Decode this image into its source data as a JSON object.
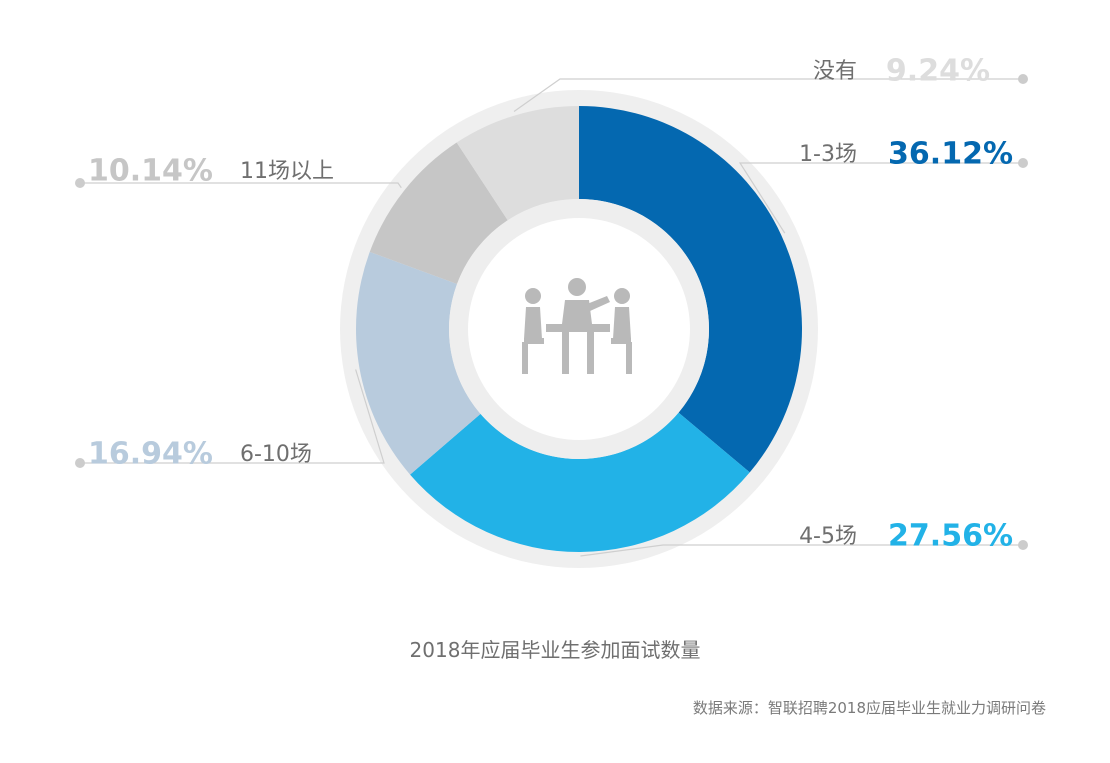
{
  "chart_data": {
    "type": "pie",
    "title": "2018年应届毕业生参加面试数量",
    "source": "数据来源：智联招聘2018应届毕业生就业力调研问卷",
    "series": [
      {
        "label": "1-3场",
        "value": 36.12,
        "display": "36.12%",
        "color": "#0468b0",
        "label_color": "#0468b0"
      },
      {
        "label": "4-5场",
        "value": 27.56,
        "display": "27.56%",
        "color": "#22b2e7",
        "label_color": "#22b2e7"
      },
      {
        "label": "6-10场",
        "value": 16.94,
        "display": "16.94%",
        "color": "#b8cbdd",
        "label_color": "#b8cbdd"
      },
      {
        "label": "11场以上",
        "value": 10.14,
        "display": "10.14%",
        "color": "#c6c6c6",
        "label_color": "#c6c6c6"
      },
      {
        "label": "没有",
        "value": 9.24,
        "display": "9.24%",
        "color": "#dddddd",
        "label_color": "#dddddd"
      }
    ],
    "center_icon": "meeting-icon"
  }
}
